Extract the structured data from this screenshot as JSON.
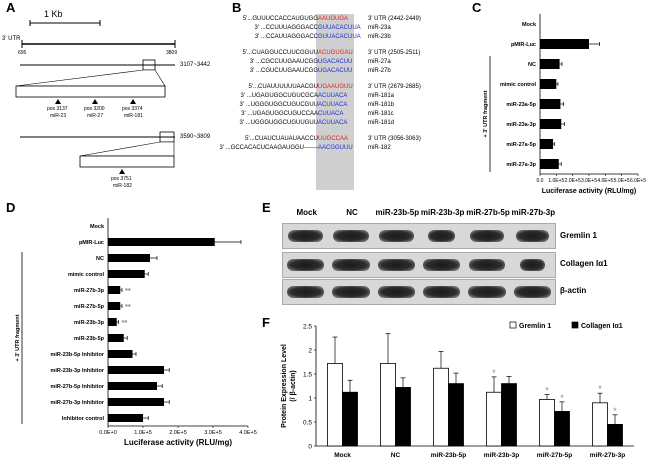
{
  "panel_labels": {
    "a": "A",
    "b": "B",
    "c": "C",
    "d": "D",
    "e": "E",
    "f": "F"
  },
  "panel_a": {
    "scale_label": "1 Kb",
    "utr_label": "3' UTR",
    "utr_start": "695",
    "utr_end": "3809",
    "region1": "3107~3442",
    "region2": "3590~3809",
    "sites": [
      {
        "pos": "pos 3137",
        "mir": "miR-23"
      },
      {
        "pos": "pos 3200",
        "mir": "miR-27"
      },
      {
        "pos": "pos 3374",
        "mir": "miR-181"
      }
    ],
    "site2": {
      "pos": "pos 3751",
      "mir": "miR-182"
    }
  },
  "panel_b": {
    "groups": [
      {
        "utr": {
          "pre": "5'...GUUUCCACCAUGUGG",
          "seed": "AAUGUGA",
          "post": "",
          "label": "3' UTR (2442-2449)"
        },
        "mirs": [
          {
            "pre": "3' ...CCUUUAGGGACC",
            "seed": "GUUACACUU",
            "post": "A",
            "label": "miR-23a"
          },
          {
            "pre": "3' ...CCAUUAGGGACC",
            "seed": "GUUACACUU",
            "post": "A",
            "label": "miR-23b"
          }
        ]
      },
      {
        "utr": {
          "pre": "5'...CUAGGUCCUUCGGUU",
          "seed": "ACUGUGA",
          "post": "U",
          "label": "3' UTR (2505-2511)"
        },
        "mirs": [
          {
            "pre": "3' ...CGCCUUGAAUCGG",
            "seed": "UGACACUU",
            "post": "",
            "label": "miR-27a"
          },
          {
            "pre": "3' ...CGUCUUGAAUCGG",
            "seed": "UGACACUU",
            "post": "",
            "label": "miR-27b"
          }
        ]
      },
      {
        "utr": {
          "pre": "5'...CUAUUUUUUAACGU",
          "seed": "UGAAUGU",
          "post": "U",
          "label": "3' UTR (2679-2685)"
        },
        "mirs": [
          {
            "pre": "3' ...UGAGUGGCUGUCGCA",
            "seed": "ACUUACA",
            "post": "",
            "label": "miR-181a"
          },
          {
            "pre": "3' ...UGGGUGGCUGUCGUU",
            "seed": "ACUUACA",
            "post": "",
            "label": "miR-181b"
          },
          {
            "pre": "3' ...UGAGUGGCUGUCCAA",
            "seed": "CUUACA",
            "post": "",
            "label": "miR-181c"
          },
          {
            "pre": "3' ...UGGGUGGCUGUUGUU",
            "seed": "ACUUACA",
            "post": "",
            "label": "miR-181d"
          }
        ]
      },
      {
        "utr": {
          "pre": "5'...CUAUCUAUAUAACCU",
          "seed": "UUGCCAA",
          "post": "",
          "label": "3' UTR (3056-3063)"
        },
        "mirs": [
          {
            "pre": "3' ...GCCACACUCAAGAUGGU-------",
            "seed": "AACGGUUU",
            "post": "",
            "label": "miR-182"
          }
        ]
      }
    ]
  },
  "panel_c": {
    "chart_data": {
      "type": "bar",
      "orientation": "horizontal",
      "categories": [
        "Mock",
        "pMIR-Luc",
        "NC",
        "mimic control",
        "miR-23a-5p",
        "miR-23a-3p",
        "miR-27a-5p",
        "miR-27a-3p"
      ],
      "values": [
        0,
        300000,
        120000,
        100000,
        125000,
        130000,
        80000,
        115000
      ],
      "errors": [
        0,
        65000,
        15000,
        10000,
        20000,
        20000,
        10000,
        15000
      ],
      "xlabel": "Luciferase activity (RLU/mg)",
      "xlim": [
        0,
        600000
      ],
      "xticks": [
        "0.0",
        "1.0E+5",
        "2.0E+5",
        "3.0E+5",
        "4.0E+5",
        "5.0E+5",
        "6.0E+5"
      ],
      "group_label": "+ 3' UTR fragment"
    }
  },
  "panel_d": {
    "chart_data": {
      "type": "bar",
      "orientation": "horizontal",
      "categories": [
        "Mock",
        "pMIR-Luc",
        "NC",
        "mimic control",
        "miR-27b-3p",
        "miR-27b-5p",
        "miR-23b-3p",
        "miR-23b-5p",
        "miR-23b-5p Inhibitor",
        "miR-23b-3p Inhibitor",
        "miR-27b-5p Inhibitor",
        "miR-27b-3p Inhibitor",
        "Inhibitor control"
      ],
      "values": [
        0,
        305000,
        120000,
        105000,
        35000,
        35000,
        25000,
        45000,
        70000,
        160000,
        140000,
        160000,
        100000
      ],
      "errors": [
        0,
        75000,
        20000,
        10000,
        5000,
        5000,
        5000,
        10000,
        10000,
        15000,
        15000,
        15000,
        15000
      ],
      "significance": [
        "",
        "",
        "",
        "",
        "**",
        "**",
        "**",
        "",
        "",
        "",
        "",
        "",
        ""
      ],
      "xlabel": "Luciferase activity (RLU/mg)",
      "xlim": [
        0,
        400000
      ],
      "xticks": [
        "0.0E+0",
        "1.0E+5",
        "2.0E+5",
        "3.0E+5",
        "4.0E+5"
      ],
      "group_label": "+ 3' UTR fragment"
    }
  },
  "panel_e": {
    "lanes": [
      "Mock",
      "NC",
      "miR-23b-5p",
      "miR-23b-3p",
      "miR-27b-5p",
      "miR-27b-3p"
    ],
    "blots": [
      "Gremlin 1",
      "Collagen Iα1",
      "β-actin"
    ]
  },
  "panel_f": {
    "chart_data": {
      "type": "bar",
      "categories": [
        "Mock",
        "NC",
        "miR-23b-5p",
        "miR-23b-3p",
        "miR-27b-5p",
        "miR-27b-3p"
      ],
      "series": [
        {
          "name": "Gremlin 1",
          "values": [
            1.72,
            1.72,
            1.62,
            1.12,
            0.97,
            0.9
          ],
          "errors": [
            0.55,
            0.62,
            0.35,
            0.32,
            0.1,
            0.2
          ],
          "sig": [
            "",
            "",
            "",
            "*",
            "*",
            "*"
          ]
        },
        {
          "name": "Collagen Iα1",
          "values": [
            1.12,
            1.22,
            1.3,
            1.3,
            0.72,
            0.45
          ],
          "errors": [
            0.25,
            0.2,
            0.22,
            0.15,
            0.2,
            0.2
          ],
          "sig": [
            "",
            "",
            "",
            "",
            "*",
            "*"
          ]
        }
      ],
      "ylabel": "Protein Expression Level",
      "ylabel2": "(/ β-actin)",
      "ylim": [
        0,
        2.5
      ],
      "yticks": [
        "0",
        "0.5",
        "1",
        "1.5",
        "2",
        "2.5"
      ],
      "legend": "top-right"
    }
  }
}
